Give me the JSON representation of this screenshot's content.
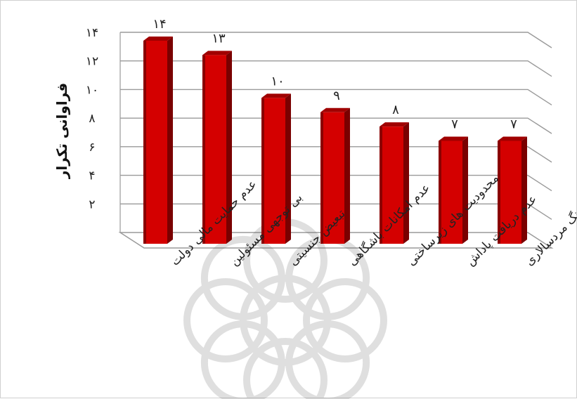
{
  "chart_data": {
    "type": "bar",
    "title": "",
    "xlabel": "",
    "ylabel": "فراوانی تکرار",
    "categories": [
      "عدم حمایت مالی دولت",
      "بی توجهی مسئولین",
      "تبعیض جنسیتی",
      "عدم امکانات باشگاهی",
      "محدودیت های زیرساختی",
      "عدم دریافت پاداش",
      "فرهنگ مردسالاری"
    ],
    "values": [
      14,
      13,
      10,
      9,
      8,
      7,
      7
    ],
    "value_labels": [
      "۱۴",
      "۱۳",
      "۱۰",
      "۹",
      "۸",
      "۷",
      "۷"
    ],
    "ylim": [
      0,
      14
    ],
    "yticks": [
      2,
      4,
      6,
      8,
      10,
      12,
      14
    ],
    "ytick_labels": [
      "۲",
      "۴",
      "۶",
      "۸",
      "۱۰",
      "۱۲",
      "۱۴"
    ],
    "grid": true,
    "legend": "none",
    "bar_color": "#d40000",
    "bar_side_color": "#7a0000",
    "bar_top_color": "#a00000"
  }
}
